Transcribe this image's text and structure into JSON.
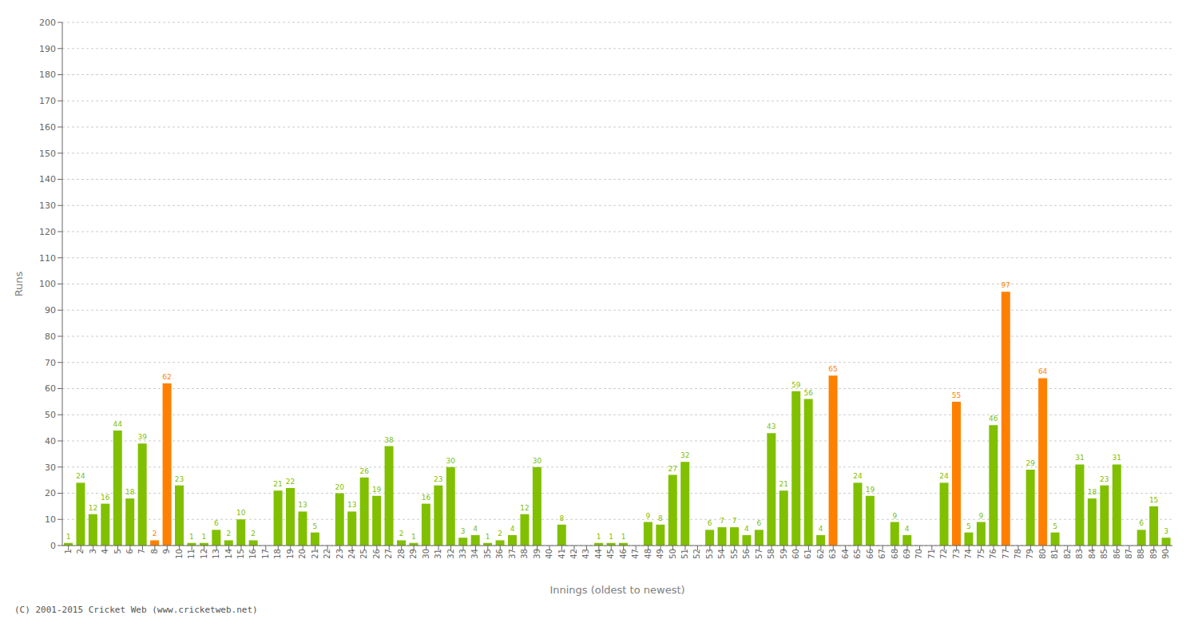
{
  "chart_data": {
    "type": "bar",
    "xlabel": "Innings (oldest to newest)",
    "ylabel": "Runs",
    "annotations": [
      "(C) 2001-2015 Cricket Web (www.cricketweb.net)"
    ],
    "categories": [
      "1",
      "2",
      "3",
      "4",
      "5",
      "6",
      "7",
      "8",
      "9",
      "10",
      "11",
      "12",
      "13",
      "14",
      "15",
      "16",
      "17",
      "18",
      "19",
      "20",
      "21",
      "22",
      "23",
      "24",
      "25",
      "26",
      "27",
      "28",
      "29",
      "30",
      "31",
      "32",
      "33",
      "34",
      "35",
      "36",
      "37",
      "38",
      "39",
      "40",
      "41",
      "42",
      "43",
      "44",
      "45",
      "46",
      "47",
      "48",
      "49",
      "50",
      "51",
      "52",
      "53",
      "54",
      "55",
      "56",
      "57",
      "58",
      "59",
      "60",
      "61",
      "62",
      "63",
      "64",
      "65",
      "66",
      "67",
      "68",
      "69",
      "70",
      "71",
      "72",
      "73",
      "74",
      "75",
      "76",
      "77",
      "78",
      "79",
      "80",
      "81",
      "82",
      "83",
      "84",
      "85",
      "86",
      "87",
      "88",
      "89",
      "90"
    ],
    "values": [
      1,
      24,
      12,
      16,
      44,
      18,
      39,
      2,
      62,
      23,
      1,
      1,
      6,
      2,
      10,
      2,
      0,
      21,
      22,
      13,
      5,
      0,
      20,
      13,
      26,
      19,
      38,
      2,
      1,
      16,
      23,
      30,
      3,
      4,
      1,
      2,
      4,
      12,
      30,
      0,
      8,
      0,
      0,
      1,
      1,
      1,
      0,
      9,
      8,
      27,
      32,
      0,
      6,
      7,
      7,
      4,
      6,
      43,
      21,
      59,
      56,
      4,
      65,
      0,
      24,
      19,
      0,
      9,
      4,
      0,
      0,
      24,
      55,
      5,
      9,
      46,
      97,
      0,
      29,
      64,
      5,
      0,
      31,
      18,
      23,
      31,
      0,
      6,
      15,
      3
    ],
    "colors": [
      "#80C000",
      "#80C000",
      "#80C000",
      "#80C000",
      "#80C000",
      "#80C000",
      "#80C000",
      "#FF8000",
      "#FF8000",
      "#80C000",
      "#80C000",
      "#80C000",
      "#80C000",
      "#80C000",
      "#80C000",
      "#80C000",
      "#80C000",
      "#80C000",
      "#80C000",
      "#80C000",
      "#80C000",
      "#80C000",
      "#80C000",
      "#80C000",
      "#80C000",
      "#80C000",
      "#80C000",
      "#80C000",
      "#80C000",
      "#80C000",
      "#80C000",
      "#80C000",
      "#80C000",
      "#80C000",
      "#80C000",
      "#80C000",
      "#80C000",
      "#80C000",
      "#80C000",
      "#80C000",
      "#80C000",
      "#80C000",
      "#80C000",
      "#80C000",
      "#80C000",
      "#80C000",
      "#80C000",
      "#80C000",
      "#80C000",
      "#80C000",
      "#80C000",
      "#80C000",
      "#80C000",
      "#80C000",
      "#80C000",
      "#80C000",
      "#80C000",
      "#80C000",
      "#80C000",
      "#80C000",
      "#80C000",
      "#80C000",
      "#FF8000",
      "#80C000",
      "#80C000",
      "#80C000",
      "#80C000",
      "#80C000",
      "#80C000",
      "#80C000",
      "#80C000",
      "#80C000",
      "#FF8000",
      "#80C000",
      "#80C000",
      "#80C000",
      "#FF8000",
      "#80C000",
      "#80C000",
      "#FF8000",
      "#80C000",
      "#80C000",
      "#80C000",
      "#80C000",
      "#80C000",
      "#80C000",
      "#80C000",
      "#80C000",
      "#80C000",
      "#80C000"
    ],
    "ylim": [
      0,
      200
    ],
    "yticks": [
      0,
      10,
      20,
      30,
      40,
      50,
      60,
      70,
      80,
      90,
      100,
      110,
      120,
      130,
      140,
      150,
      160,
      170,
      180,
      190,
      200
    ],
    "grid": true,
    "data_labels": true
  }
}
